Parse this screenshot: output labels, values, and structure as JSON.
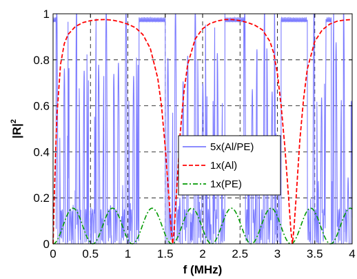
{
  "chart_data": {
    "type": "line",
    "title": "",
    "xlabel": "f (MHz)",
    "ylabel": "|R|",
    "ylabel_superscript": "2",
    "xlim": [
      0,
      4
    ],
    "ylim": [
      0,
      1
    ],
    "x_ticks": [
      "0",
      "0.5",
      "1",
      "1.5",
      "2",
      "2.5",
      "3",
      "3.5",
      "4"
    ],
    "y_ticks": [
      "0",
      "0.2",
      "0.4",
      "0.6",
      "0.8",
      "1"
    ],
    "grid": true,
    "legend_position": "center-right",
    "series": [
      {
        "name": "5x(Al/PE)",
        "color": "#7b7bff",
        "style": "solid",
        "values_described": "rapidly oscillating reflectance between 0 and 1; band gaps near 0-0.2, 1.15-1.5, 2.3-2.55, 3.05-3.4 MHz"
      },
      {
        "name": "1x(Al)",
        "color": "#ff0000",
        "style": "dashed",
        "x": [
          0,
          0.02,
          0.05,
          0.1,
          0.15,
          0.2,
          0.3,
          0.4,
          0.5,
          0.6,
          0.7,
          0.8,
          0.9,
          1.0,
          1.1,
          1.2,
          1.3,
          1.4,
          1.45,
          1.5,
          1.55,
          1.58,
          1.6,
          1.62,
          1.65,
          1.7,
          1.75,
          1.8,
          1.9,
          2.0,
          2.1,
          2.2,
          2.3,
          2.4,
          2.5,
          2.6,
          2.7,
          2.8,
          2.9,
          2.95,
          3.0,
          3.05,
          3.1,
          3.15,
          3.18,
          3.2,
          3.22,
          3.25,
          3.3,
          3.35,
          3.4,
          3.5,
          3.6,
          3.7,
          3.8,
          3.9,
          4.0
        ],
        "y": [
          0,
          0.25,
          0.55,
          0.78,
          0.87,
          0.91,
          0.945,
          0.962,
          0.97,
          0.974,
          0.975,
          0.972,
          0.965,
          0.955,
          0.94,
          0.91,
          0.85,
          0.72,
          0.6,
          0.42,
          0.2,
          0.06,
          0.0,
          0.06,
          0.22,
          0.48,
          0.66,
          0.78,
          0.89,
          0.935,
          0.958,
          0.969,
          0.975,
          0.975,
          0.97,
          0.962,
          0.95,
          0.93,
          0.88,
          0.83,
          0.74,
          0.6,
          0.42,
          0.2,
          0.06,
          0.0,
          0.06,
          0.2,
          0.45,
          0.63,
          0.76,
          0.88,
          0.93,
          0.955,
          0.968,
          0.973,
          0.975
        ]
      },
      {
        "name": "1x(PE)",
        "color": "#009900",
        "style": "dashdot",
        "period": 0.53,
        "peak": 0.155
      }
    ]
  }
}
